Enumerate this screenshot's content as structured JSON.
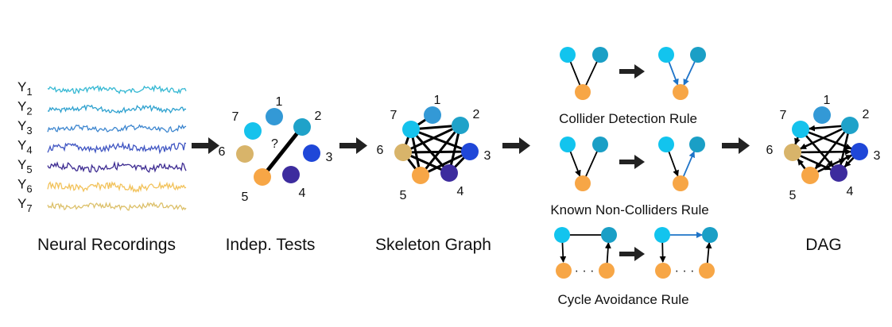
{
  "stages": {
    "neural_recordings": "Neural Recordings",
    "indep_tests": "Indep. Tests",
    "skeleton_graph": "Skeleton Graph",
    "dag": "DAG"
  },
  "signals": [
    {
      "label": "Y",
      "sub": "1",
      "color": "#35b8d3"
    },
    {
      "label": "Y",
      "sub": "2",
      "color": "#2ea1cf"
    },
    {
      "label": "Y",
      "sub": "3",
      "color": "#3d86cf"
    },
    {
      "label": "Y",
      "sub": "4",
      "color": "#3f55c2"
    },
    {
      "label": "Y",
      "sub": "5",
      "color": "#3c2a91"
    },
    {
      "label": "Y",
      "sub": "6",
      "color": "#f2c25a"
    },
    {
      "label": "Y",
      "sub": "7",
      "color": "#dcc06a"
    }
  ],
  "node_labels": [
    "1",
    "2",
    "3",
    "4",
    "5",
    "6",
    "7"
  ],
  "node_colors": [
    "#3399d6",
    "#1fa2c9",
    "#1f47d8",
    "#3d2c9e",
    "#f7a646",
    "#d8b46a",
    "#15c2ec"
  ],
  "indep": {
    "question": "?"
  },
  "rules": {
    "collider": "Collider Detection Rule",
    "noncollider": "Known Non-Colliders Rule",
    "cycle": "Cycle Avoidance Rule",
    "dots": "· · ·"
  },
  "colors": {
    "edge": "#000000",
    "arrow_blue": "#1e74c8",
    "cyan": "#12c4ee",
    "teal": "#1a9fc6",
    "orange": "#f7a646"
  }
}
